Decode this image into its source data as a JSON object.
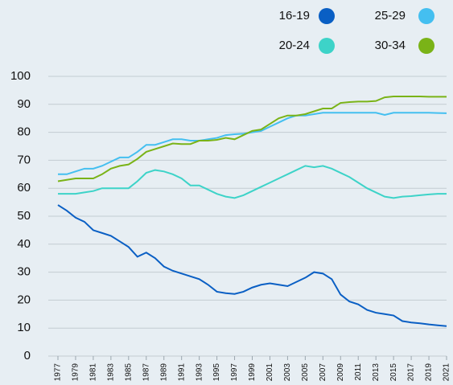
{
  "chart_data": {
    "type": "line",
    "x": [
      1977,
      1978,
      1979,
      1980,
      1981,
      1982,
      1983,
      1984,
      1985,
      1986,
      1987,
      1988,
      1989,
      1990,
      1991,
      1992,
      1993,
      1994,
      1995,
      1996,
      1997,
      1998,
      1999,
      2000,
      2001,
      2002,
      2003,
      2004,
      2005,
      2006,
      2007,
      2008,
      2009,
      2010,
      2011,
      2012,
      2013,
      2014,
      2015,
      2016,
      2017,
      2018,
      2019,
      2020,
      2021
    ],
    "series": [
      {
        "name": "16-19",
        "color": "#0a5fc4",
        "values": [
          54,
          52,
          49.5,
          48,
          45,
          44,
          43,
          41,
          39,
          35.5,
          37,
          35,
          32,
          30.5,
          29.5,
          28.5,
          27.5,
          25.5,
          23,
          22.5,
          22.2,
          23,
          24.5,
          25.5,
          26,
          25.5,
          25,
          26.5,
          28,
          30,
          29.5,
          27.5,
          22,
          19.5,
          18.5,
          16.5,
          15.5,
          15,
          14.5,
          12.5,
          12,
          11.7,
          11.3,
          11,
          10.7
        ]
      },
      {
        "name": "25-29",
        "color": "#44bff0",
        "values": [
          65,
          65,
          66,
          67,
          67,
          68,
          69.5,
          71,
          71,
          73,
          75.5,
          75.5,
          76.5,
          77.5,
          77.5,
          77,
          77,
          77.5,
          78,
          79,
          79.3,
          79.5,
          80,
          80.5,
          82,
          83.5,
          85,
          86,
          86,
          86.5,
          87,
          87,
          87,
          87,
          87,
          87,
          87,
          86.2,
          87,
          87,
          87,
          87,
          87,
          86.9,
          86.8
        ]
      },
      {
        "name": "20-24",
        "color": "#3dd3c8",
        "values": [
          58,
          58,
          58,
          58.5,
          59,
          60,
          60,
          60,
          60,
          62.5,
          65.5,
          66.5,
          66,
          65,
          63.5,
          61,
          61,
          59.5,
          58,
          57,
          56.5,
          57.5,
          59,
          60.5,
          62,
          63.5,
          65,
          66.5,
          68,
          67.5,
          68,
          67,
          65.5,
          64,
          62,
          60,
          58.5,
          57,
          56.5,
          57,
          57.2,
          57.5,
          57.8,
          58,
          58
        ]
      },
      {
        "name": "30-34",
        "color": "#7ab317",
        "values": [
          62.5,
          63,
          63.5,
          63.5,
          63.5,
          65,
          67,
          68,
          68.5,
          70.5,
          73,
          74,
          75,
          76,
          75.8,
          75.8,
          77,
          77,
          77.3,
          78,
          77.5,
          79,
          80.5,
          81,
          83,
          85,
          86,
          86,
          86.5,
          87.5,
          88.5,
          88.5,
          90.5,
          90.8,
          91,
          91,
          91.2,
          92.5,
          92.8,
          92.8,
          92.8,
          92.8,
          92.7,
          92.7,
          92.7
        ]
      }
    ],
    "xlim": [
      1977,
      2021
    ],
    "xticks": [
      1977,
      1979,
      1981,
      1983,
      1985,
      1987,
      1989,
      1991,
      1993,
      1995,
      1997,
      1999,
      2001,
      2003,
      2005,
      2007,
      2009,
      2011,
      2013,
      2015,
      2017,
      2019,
      2021
    ],
    "ylim": [
      0,
      100
    ],
    "yticks": [
      0,
      10,
      20,
      30,
      40,
      50,
      60,
      70,
      80,
      90,
      100
    ],
    "grid": true
  }
}
